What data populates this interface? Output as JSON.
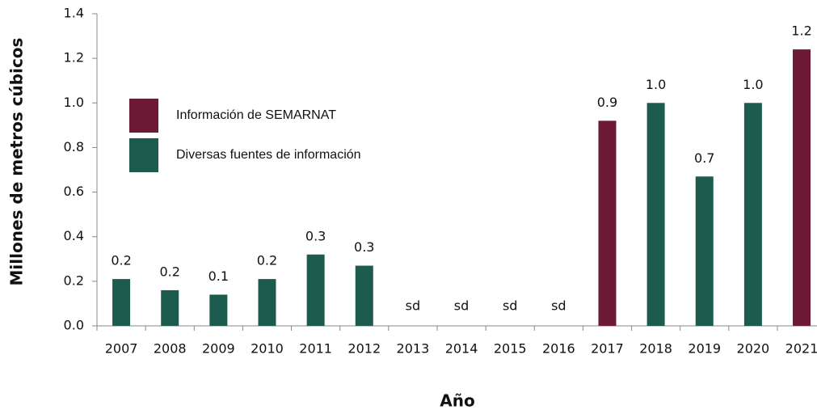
{
  "chart_data": {
    "type": "bar",
    "y_label": "Millones de metros cúbicos",
    "x_label": "Año",
    "categories": [
      "2007",
      "2008",
      "2009",
      "2010",
      "2011",
      "2012",
      "2013",
      "2014",
      "2015",
      "2016",
      "2017",
      "2018",
      "2019",
      "2020",
      "2021"
    ],
    "series": [
      {
        "name": "Información de SEMARNAT",
        "color": "#6d1a36",
        "values": [
          null,
          null,
          null,
          null,
          null,
          null,
          null,
          null,
          null,
          null,
          0.92,
          null,
          null,
          null,
          1.24
        ],
        "value_labels": [
          null,
          null,
          null,
          null,
          null,
          null,
          null,
          null,
          null,
          null,
          "0.9",
          null,
          null,
          null,
          "1.2"
        ]
      },
      {
        "name": "Diversas fuentes de información",
        "color": "#1e5b4f",
        "values": [
          0.21,
          0.16,
          0.14,
          0.21,
          0.32,
          0.27,
          null,
          null,
          null,
          null,
          null,
          1.0,
          0.67,
          1.0,
          null
        ],
        "value_labels": [
          "0.2",
          "0.2",
          "0.1",
          "0.2",
          "0.3",
          "0.3",
          "sd",
          "sd",
          "sd",
          "sd",
          null,
          "1.0",
          "0.7",
          "1.0",
          null
        ]
      }
    ],
    "ylim": [
      0,
      1.4
    ],
    "yticks": [
      {
        "value": 0,
        "label": "0.0"
      },
      0.2,
      0.4,
      0.6,
      0.8,
      {
        "value": 1,
        "label": "1.0"
      },
      1.2,
      1.4
    ],
    "legend": "upper left"
  }
}
